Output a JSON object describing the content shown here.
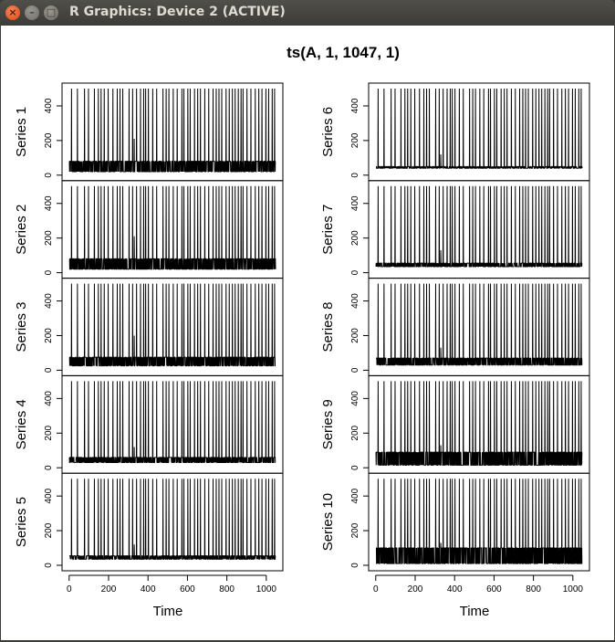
{
  "window": {
    "title": "R Graphics: Device 2 (ACTIVE)",
    "close_icon": "×",
    "min_icon": "–",
    "max_icon": "□"
  },
  "chart_data": {
    "type": "line",
    "title": "ts(A, 1, 1047, 1)",
    "xlabel": "Time",
    "xlim": [
      1,
      1047
    ],
    "ylim": [
      0,
      500
    ],
    "x_ticks": [
      0,
      200,
      400,
      600,
      800,
      1000
    ],
    "y_ticks": [
      0,
      200,
      400
    ],
    "columns": 2,
    "series": [
      {
        "name": "Series 1",
        "base": [
          20,
          80
        ],
        "spike_value": 500,
        "extra_peak": {
          "x": 330,
          "y": 210
        }
      },
      {
        "name": "Series 2",
        "base": [
          20,
          80
        ],
        "spike_value": 500,
        "extra_peak": {
          "x": 330,
          "y": 210
        }
      },
      {
        "name": "Series 3",
        "base": [
          25,
          75
        ],
        "spike_value": 500,
        "extra_peak": {
          "x": 330,
          "y": 200
        }
      },
      {
        "name": "Series 4",
        "base": [
          30,
          60
        ],
        "spike_value": 500,
        "extra_peak": {
          "x": 330,
          "y": 120
        }
      },
      {
        "name": "Series 5",
        "base": [
          35,
          55
        ],
        "spike_value": 500,
        "extra_peak": {
          "x": 330,
          "y": 120
        }
      },
      {
        "name": "Series 6",
        "base": [
          40,
          50
        ],
        "spike_value": 500,
        "extra_peak": {
          "x": 330,
          "y": 120
        }
      },
      {
        "name": "Series 7",
        "base": [
          35,
          55
        ],
        "spike_value": 500,
        "extra_peak": {
          "x": 330,
          "y": 130
        }
      },
      {
        "name": "Series 8",
        "base": [
          30,
          70
        ],
        "spike_value": 500,
        "extra_peak": {
          "x": 330,
          "y": 130
        }
      },
      {
        "name": "Series 9",
        "base": [
          15,
          90
        ],
        "spike_value": 500,
        "extra_peak": {
          "x": 330,
          "y": 130
        }
      },
      {
        "name": "Series 10",
        "base": [
          10,
          100
        ],
        "spike_value": 500,
        "extra_peak": {
          "x": 330,
          "y": 130
        }
      }
    ],
    "spike_times": [
      12,
      42,
      78,
      98,
      128,
      148,
      162,
      178,
      198,
      222,
      244,
      258,
      272,
      304,
      322,
      342,
      362,
      378,
      388,
      402,
      424,
      444,
      476,
      492,
      506,
      528,
      548,
      572,
      582,
      602,
      614,
      636,
      652,
      666,
      688,
      708,
      730,
      746,
      760,
      774,
      796,
      812,
      828,
      842,
      858,
      872,
      882,
      902,
      922,
      944,
      962,
      978,
      998,
      1012,
      1030,
      1042
    ]
  }
}
